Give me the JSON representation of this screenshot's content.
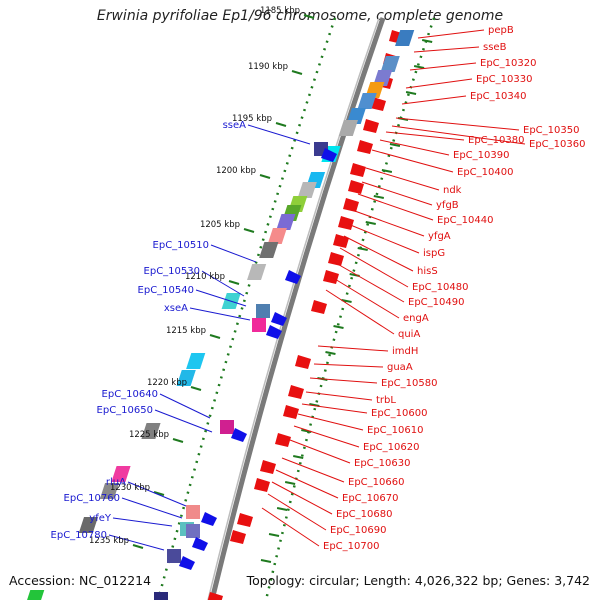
{
  "title": "Erwinia pyrifoliae Ep1/96 chromosome, complete genome",
  "footer": {
    "accession": "Accession: NC_012214",
    "summary": "Topology: circular; Length: 4,026,322 bp; Genes: 3,742"
  },
  "colors": {
    "backbone": "#8c8c8c",
    "ticks": "#1f7a1f",
    "forward": "#e81010",
    "reverse": "#1010e8",
    "right_label": "#e01010",
    "left_label": "#1a1ad0"
  },
  "scale_labels": [
    "1185 kbp",
    "1190 kbp",
    "1195 kbp",
    "1200 kbp",
    "1205 kbp",
    "1210 kbp",
    "1215 kbp",
    "1220 kbp",
    "1225 kbp",
    "1230 kbp",
    "1235 kbp"
  ],
  "right_genes": [
    "pepB",
    "sseB",
    "EpC_10320",
    "EpC_10330",
    "EpC_10340",
    "EpC_10350",
    "EpC_10360",
    "EpC_10380",
    "EpC_10390",
    "EpC_10400",
    "ndk",
    "yfgB",
    "EpC_10440",
    "yfgA",
    "ispG",
    "hisS",
    "EpC_10480",
    "EpC_10490",
    "engA",
    "quiA",
    "imdH",
    "guaA",
    "EpC_10580",
    "trbL",
    "EpC_10600",
    "EpC_10610",
    "EpC_10620",
    "EpC_10630",
    "EpC_10660",
    "EpC_10670",
    "EpC_10680",
    "EpC_10690",
    "EpC_10700"
  ],
  "left_genes": [
    "sseA",
    "EpC_10510",
    "EpC_10530",
    "EpC_10540",
    "xseA",
    "EpC_10640",
    "EpC_10650",
    "rluA",
    "EpC_10760",
    "yfeY",
    "EpC_10780"
  ]
}
